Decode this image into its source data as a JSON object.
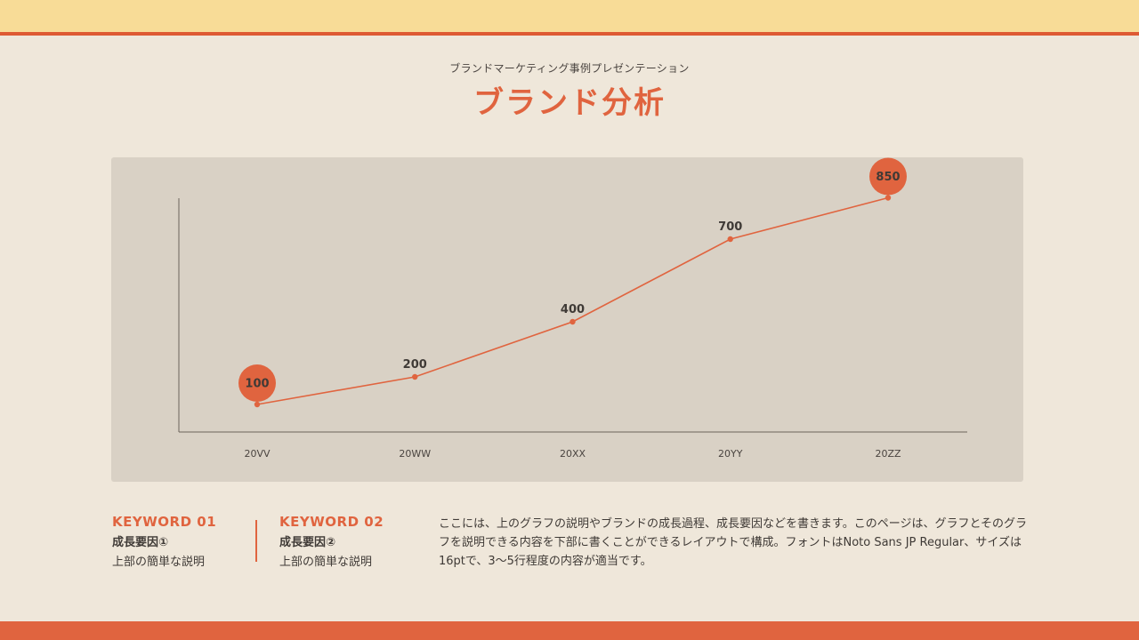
{
  "header": {
    "subtitle": "ブランドマーケティング事例プレゼンテーション",
    "title": "ブランド分析"
  },
  "chart_data": {
    "type": "line",
    "categories": [
      "20VV",
      "20WW",
      "20XX",
      "20YY",
      "20ZZ"
    ],
    "values": [
      100,
      200,
      400,
      700,
      850
    ],
    "data_labels": [
      "100",
      "200",
      "400",
      "700",
      "850"
    ],
    "highlighted": [
      "100",
      "850"
    ],
    "ylim": [
      0,
      1000
    ],
    "grid": false,
    "colors": {
      "line": "#e0643f",
      "highlight": "#e0643f"
    }
  },
  "keywords": [
    {
      "title": "KEYWORD 01",
      "heading": "成長要因①",
      "description": "上部の簡単な説明"
    },
    {
      "title": "KEYWORD 02",
      "heading": "成長要因②",
      "description": "上部の簡単な説明"
    }
  ],
  "body": {
    "text": "ここには、上のグラフの説明やブランドの成長過程、成長要因などを書きます。このページは、グラフとそのグラフを説明できる内容を下部に書くことができるレイアウトで構成。フォントはNoto Sans JP Regular、サイズは16ptで、3〜5行程度の内容が適当です。"
  },
  "colors": {
    "accent": "#e0643f",
    "top_band": "#f8dc97",
    "background": "#efe7da",
    "panel": "#d9d1c5"
  }
}
